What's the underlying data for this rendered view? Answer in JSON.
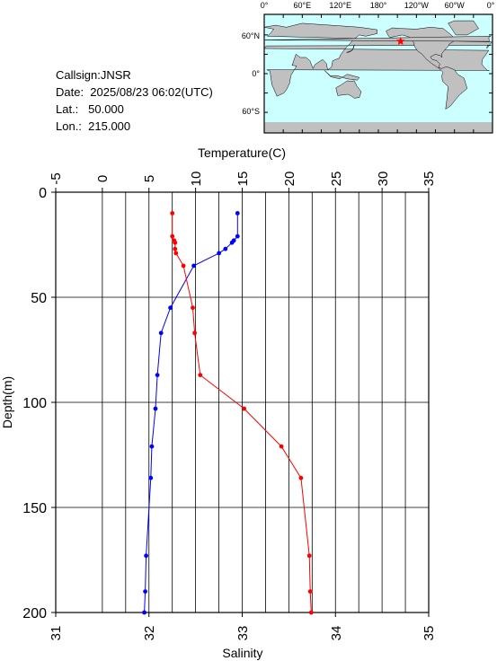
{
  "header": {
    "callsign": "Callsign:JNSR",
    "date": "Date:  2025/08/23 06:02(UTC)",
    "lat": "Lat.:   50.000",
    "lon": "Lon.:  215.000"
  },
  "map": {
    "lon_labels": [
      "0°",
      "60°E",
      "120°E",
      "180°",
      "120°W",
      "60°W",
      "0°"
    ],
    "lat_labels": [
      "60°N",
      "0°",
      "60°S"
    ],
    "ocean_color": "#ccffff",
    "land_color": "#c0c0c0",
    "station": {
      "lon": 215.0,
      "lat": 50.0,
      "marker": "star",
      "color": "#ff0000"
    }
  },
  "chart_data": {
    "type": "line",
    "title": "",
    "top_axis": {
      "label": "Temperature(C)",
      "range": [
        -5,
        35
      ],
      "ticks": [
        "-5",
        "0",
        "5",
        "10",
        "15",
        "20",
        "25",
        "30",
        "35"
      ]
    },
    "bottom_axis": {
      "label": "Salinity",
      "range": [
        31,
        35
      ],
      "ticks": [
        "31",
        "32",
        "33",
        "34",
        "35"
      ]
    },
    "y_axis": {
      "label": "Depth(m)",
      "range": [
        0,
        200
      ],
      "inverted": true,
      "ticks": [
        "0",
        "50",
        "100",
        "150",
        "200"
      ]
    },
    "grid": true,
    "series": [
      {
        "axis": "temperature",
        "color": "#0000ff",
        "points": [
          [
            14.5,
            10
          ],
          [
            14.5,
            21
          ],
          [
            14.1,
            23
          ],
          [
            13.9,
            24
          ],
          [
            13.2,
            27
          ],
          [
            12.5,
            29
          ],
          [
            9.8,
            35
          ],
          [
            7.3,
            55
          ],
          [
            6.3,
            67
          ],
          [
            5.9,
            87
          ],
          [
            5.7,
            103
          ],
          [
            5.3,
            121
          ],
          [
            5.2,
            136
          ],
          [
            4.7,
            173
          ],
          [
            4.6,
            190
          ],
          [
            4.5,
            200
          ]
        ]
      },
      {
        "axis": "salinity",
        "color": "#ff0000",
        "points": [
          [
            32.25,
            10
          ],
          [
            32.25,
            21
          ],
          [
            32.27,
            23
          ],
          [
            32.28,
            24
          ],
          [
            32.28,
            27
          ],
          [
            32.29,
            29
          ],
          [
            32.37,
            35
          ],
          [
            32.47,
            55
          ],
          [
            32.49,
            67
          ],
          [
            32.55,
            87
          ],
          [
            33.02,
            103
          ],
          [
            33.42,
            121
          ],
          [
            33.63,
            136
          ],
          [
            33.72,
            173
          ],
          [
            33.73,
            190
          ],
          [
            33.74,
            200
          ]
        ]
      }
    ]
  }
}
